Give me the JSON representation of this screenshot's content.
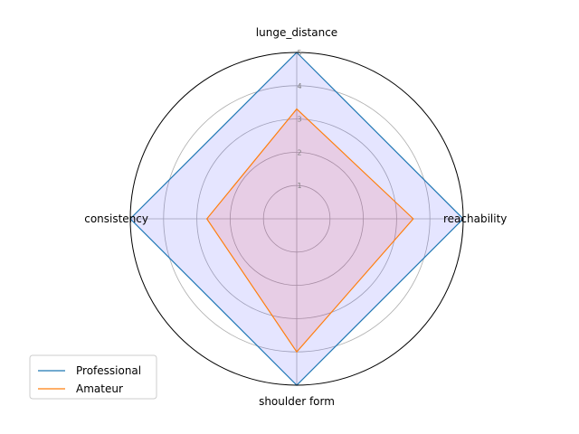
{
  "chart_data": {
    "type": "radar",
    "categories": [
      "lunge_distance",
      "reachability",
      "shoulder form",
      "consistency"
    ],
    "rlim": [
      0,
      5
    ],
    "rticks": [
      1,
      2,
      3,
      4,
      5
    ],
    "rtick_labels": [
      "1",
      "2",
      "3",
      "4",
      "5"
    ],
    "grid": true,
    "legend_position": "lower-left",
    "series": [
      {
        "name": "Professional",
        "values": [
          5,
          5,
          5,
          5
        ],
        "line_color": "#1f77b4",
        "fill_color": "#0000ff",
        "fill_opacity": 0.1
      },
      {
        "name": "Amateur",
        "values": [
          3.3,
          3.5,
          4,
          2.7
        ],
        "line_color": "#ff7f0e",
        "fill_color": "#ff0000",
        "fill_opacity": 0.1
      }
    ]
  }
}
